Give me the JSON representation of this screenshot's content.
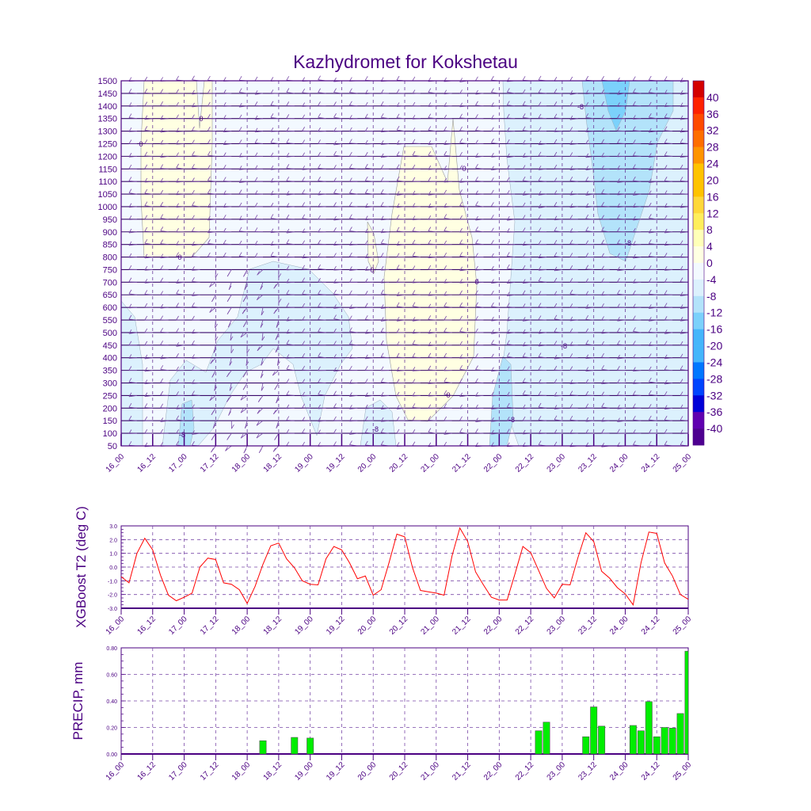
{
  "title": "Kazhydromet for Kokshetau",
  "chart_data": [
    {
      "type": "heatmap",
      "title": "Kazhydromet for Kokshetau",
      "x_tick_labels": [
        "16_00",
        "16_12",
        "17_00",
        "17_12",
        "18_00",
        "18_12",
        "19_00",
        "19_12",
        "20_00",
        "20_12",
        "21_00",
        "21_12",
        "22_00",
        "22_12",
        "23_00",
        "23_12",
        "24_00",
        "24_12",
        "25_00"
      ],
      "y_tick_labels": [
        "1500",
        "1450",
        "1400",
        "1350",
        "1300",
        "1250",
        "1200",
        "1150",
        "1100",
        "1050",
        "1000",
        "950",
        "900",
        "850",
        "800",
        "750",
        "700",
        "650",
        "600",
        "550",
        "500",
        "450",
        "400",
        "350",
        "300",
        "250",
        "200",
        "150",
        "100",
        "50"
      ],
      "ylim": [
        50,
        1500
      ],
      "colorbar_labels": [
        "40",
        "36",
        "32",
        "28",
        "24",
        "20",
        "16",
        "12",
        "8",
        "4",
        "0",
        "-4",
        "-8",
        "-12",
        "-16",
        "-20",
        "-24",
        "-28",
        "-32",
        "-36",
        "-40"
      ],
      "colorbar_colors": [
        "#d40000",
        "#ff2200",
        "#ff4a00",
        "#ff6e00",
        "#ff9400",
        "#ffc300",
        "#ffc300",
        "#ffd83a",
        "#ffee5c",
        "#ffffb8",
        "#ffffe2",
        "#f3f9ff",
        "#dcf1fd",
        "#b3e3fa",
        "#7bd1fb",
        "#45b6fb",
        "#45b6fb",
        "#0077ff",
        "#0044ff",
        "#0000d8",
        "#6000b0",
        "#4e0090"
      ],
      "contour_labels": [
        "0",
        "0",
        "0",
        "0",
        "0",
        "0",
        "0",
        "-8",
        "-8",
        "-8",
        "-8",
        "-8",
        "-8"
      ]
    },
    {
      "type": "line",
      "ylabel": "XGBoost T2 (deg C)",
      "xlabel": "",
      "ylim": [
        -3,
        3
      ],
      "y_tick_labels": [
        "3.0",
        "2.0",
        "1.0",
        "0.0",
        "-1.0",
        "-2.0",
        "-3.0"
      ],
      "x_tick_labels": [
        "16_00",
        "16_12",
        "17_00",
        "17_12",
        "18_00",
        "18_12",
        "19_00",
        "19_12",
        "20_00",
        "20_12",
        "21_00",
        "21_12",
        "22_00",
        "22_12",
        "23_00",
        "23_12",
        "24_00",
        "24_12",
        "25_00"
      ],
      "x_step_hours": 3,
      "values": [
        -0.7,
        -1.15,
        1.0,
        2.1,
        1.25,
        -0.6,
        -2.05,
        -2.45,
        -2.2,
        -1.9,
        0.0,
        0.65,
        0.55,
        -1.15,
        -1.25,
        -1.65,
        -2.65,
        -1.4,
        0.2,
        1.55,
        1.75,
        0.6,
        -0.05,
        -1.0,
        -1.25,
        -1.3,
        0.6,
        1.5,
        1.25,
        0.3,
        -0.85,
        -0.65,
        -2.05,
        -1.65,
        0.3,
        2.4,
        2.2,
        -0.05,
        -1.7,
        -1.8,
        -1.9,
        -2.05,
        0.8,
        2.85,
        1.85,
        -0.35,
        -1.3,
        -2.2,
        -2.4,
        -2.4,
        -0.5,
        1.5,
        1.05,
        -0.25,
        -1.55,
        -2.25,
        -1.25,
        -1.3,
        0.7,
        2.5,
        1.85,
        -0.3,
        -0.8,
        -1.5,
        -1.95,
        -2.75,
        0.3,
        2.55,
        2.45,
        0.3,
        -0.65,
        -2.0,
        -2.35
      ],
      "color": "#ff0000"
    },
    {
      "type": "bar",
      "ylabel": "PRECIP, mm",
      "xlabel": "",
      "ylim": [
        0,
        0.8
      ],
      "y_tick_labels": [
        "0.80",
        "0.60",
        "0.40",
        "0.20",
        "0.00"
      ],
      "x_tick_labels": [
        "16_00",
        "16_12",
        "17_00",
        "17_12",
        "18_00",
        "18_12",
        "19_00",
        "19_12",
        "20_00",
        "20_12",
        "21_00",
        "21_12",
        "22_00",
        "22_12",
        "23_00",
        "23_12",
        "24_00",
        "24_12",
        "25_00"
      ],
      "x_step_hours": 3,
      "bars": [
        [
          18,
          0.1
        ],
        [
          22,
          0.125
        ],
        [
          24,
          0.12
        ],
        [
          53,
          0.175
        ],
        [
          54,
          0.24
        ],
        [
          59,
          0.13
        ],
        [
          60,
          0.355
        ],
        [
          61,
          0.21
        ],
        [
          65,
          0.215
        ],
        [
          66,
          0.175
        ],
        [
          67,
          0.395
        ],
        [
          68,
          0.13
        ],
        [
          69,
          0.2
        ],
        [
          70,
          0.195
        ],
        [
          71,
          0.305
        ],
        [
          72,
          0.775
        ]
      ],
      "color": "#00ee00"
    }
  ]
}
